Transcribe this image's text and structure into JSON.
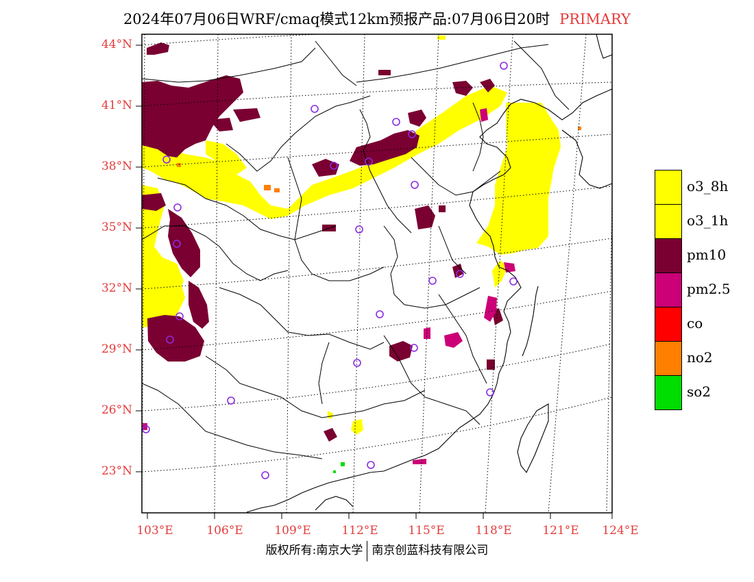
{
  "header": {
    "title": "2024年07月06日WRF/cmaq模式12km预报产品:07月06日20时",
    "tag": "PRIMARY"
  },
  "axes": {
    "lat_labels": [
      "44°N",
      "41°N",
      "38°N",
      "35°N",
      "32°N",
      "29°N",
      "26°N",
      "23°N"
    ],
    "lon_labels": [
      "103°E",
      "106°E",
      "109°E",
      "112°E",
      "115°E",
      "118°E",
      "121°E",
      "124°E"
    ]
  },
  "legend": {
    "items": [
      {
        "label": "o3_8h",
        "color": "#ffff00"
      },
      {
        "label": "o3_1h",
        "color": "#ffff00"
      },
      {
        "label": "pm10",
        "color": "#7a0032"
      },
      {
        "label": "pm2.5",
        "color": "#cc0077"
      },
      {
        "label": "co",
        "color": "#ff0000"
      },
      {
        "label": "no2",
        "color": "#ff7f00"
      },
      {
        "label": "so2",
        "color": "#00dd00"
      }
    ]
  },
  "colors": {
    "o3": "#ffff00",
    "pm10": "#7a0032",
    "pm25": "#cc0077",
    "no2": "#ff7f00",
    "so2": "#00dd00",
    "city_marker": "#8a2be2",
    "label_red": "#e53b3b"
  },
  "footer": {
    "left": "版权所有:南京大学",
    "right": "南京创蓝科技有限公司"
  }
}
